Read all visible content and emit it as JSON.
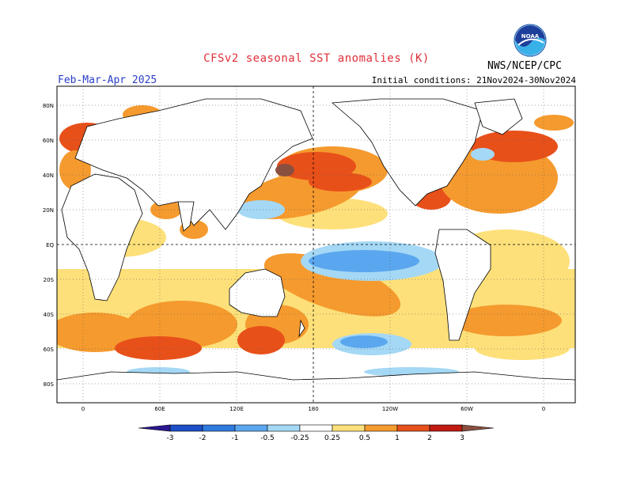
{
  "header": {
    "title": "CFSv2 seasonal SST anomalies (K)",
    "season": "Feb-Mar-Apr 2025",
    "initial_conditions": "Initial conditions: 21Nov2024-30Nov2024",
    "org": "NWS/NCEP/CPC",
    "logo_text": "NOAA"
  },
  "map": {
    "lat_labels": [
      "80N",
      "60N",
      "40N",
      "20N",
      "EQ",
      "20S",
      "40S",
      "60S",
      "80S"
    ],
    "lon_labels": [
      "0",
      "60E",
      "120E",
      "180",
      "120W",
      "60W",
      "0"
    ]
  },
  "colorbar": {
    "labels": [
      "-3",
      "-2",
      "-1",
      "-0.5",
      "-0.25",
      "0.25",
      "0.5",
      "1",
      "2",
      "3"
    ],
    "colors": [
      "#2a1890",
      "#1d4fc8",
      "#2f7be0",
      "#5aa7ef",
      "#a4d8f5",
      "#ffffff",
      "#fde07a",
      "#f59a2e",
      "#e8501a",
      "#c01a12",
      "#8a4f3f"
    ]
  }
}
